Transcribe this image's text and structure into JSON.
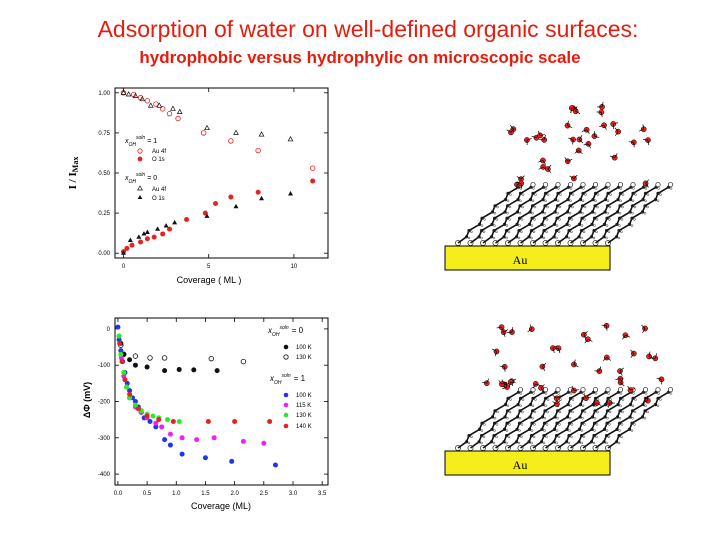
{
  "slide": {
    "title": "Adsorption of water on well-defined organic surfaces:",
    "subtitle": "hydrophobic versus hydrophylic on microscopic scale"
  },
  "colors": {
    "title": "#e81c0c",
    "substrate": "#f5ee1a",
    "red": "#e82020",
    "black": "#111111",
    "blue": "#2233ee",
    "magenta": "#ee22ee",
    "green": "#22ee22"
  },
  "substrates": [
    {
      "label": "Au"
    },
    {
      "label": "Au"
    }
  ],
  "chart_data": [
    {
      "type": "scatter",
      "xlabel": "Coverage ( ML )",
      "ylabel_main": "I / I",
      "ylabel_sub": "Max",
      "xlim": [
        -0.5,
        12
      ],
      "ylim": [
        -0.03,
        1.03
      ],
      "x_ticks": [
        "0",
        "5",
        "10"
      ],
      "y_ticks": [
        "0.00",
        "0.25",
        "0.50",
        "0.75",
        "1.00"
      ],
      "legend": {
        "groups": [
          {
            "symbol": "x",
            "sub": "OH",
            "sup": "soln",
            "value": "= 1"
          },
          {
            "symbol": "x",
            "sub": "OH",
            "sup": "soln",
            "value": "= 0"
          }
        ],
        "entries": [
          "Au 4f",
          "O 1s",
          "Au 4f",
          "O 1s"
        ]
      },
      "series": [
        {
          "name": "Au 4f",
          "marker": "circle-open",
          "color": "#e82020",
          "points": [
            [
              0,
              1.0
            ],
            [
              0.6,
              0.99
            ],
            [
              1.0,
              0.97
            ],
            [
              1.4,
              0.95
            ],
            [
              1.9,
              0.93
            ],
            [
              2.3,
              0.9
            ],
            [
              2.7,
              0.87
            ],
            [
              3.2,
              0.84
            ],
            [
              4.7,
              0.75
            ],
            [
              6.3,
              0.7
            ],
            [
              7.9,
              0.64
            ],
            [
              11.1,
              0.53
            ]
          ]
        },
        {
          "name": "O 1s",
          "marker": "circle-filled",
          "color": "#e82020",
          "points": [
            [
              0,
              0.01
            ],
            [
              0.2,
              0.03
            ],
            [
              0.5,
              0.05
            ],
            [
              1.0,
              0.07
            ],
            [
              1.4,
              0.09
            ],
            [
              1.8,
              0.1
            ],
            [
              2.3,
              0.12
            ],
            [
              2.7,
              0.15
            ],
            [
              3.7,
              0.21
            ],
            [
              4.8,
              0.25
            ],
            [
              5.4,
              0.31
            ],
            [
              6.3,
              0.35
            ],
            [
              7.9,
              0.38
            ],
            [
              11.1,
              0.45
            ]
          ]
        },
        {
          "name": "Au 4f",
          "marker": "triangle-open",
          "color": "#111111",
          "points": [
            [
              0,
              1.0
            ],
            [
              0.3,
              0.99
            ],
            [
              0.7,
              0.98
            ],
            [
              1.1,
              0.96
            ],
            [
              1.6,
              0.92
            ],
            [
              2.1,
              0.92
            ],
            [
              2.9,
              0.9
            ],
            [
              3.3,
              0.88
            ],
            [
              4.9,
              0.78
            ],
            [
              6.6,
              0.75
            ],
            [
              8.1,
              0.74
            ],
            [
              9.8,
              0.71
            ]
          ]
        },
        {
          "name": "O 1s",
          "marker": "triangle-filled",
          "color": "#111111",
          "points": [
            [
              0,
              0.0
            ],
            [
              0.4,
              0.08
            ],
            [
              0.9,
              0.1
            ],
            [
              1.2,
              0.12
            ],
            [
              1.4,
              0.13
            ],
            [
              2.0,
              0.15
            ],
            [
              2.5,
              0.17
            ],
            [
              3.0,
              0.19
            ],
            [
              4.9,
              0.23
            ],
            [
              6.6,
              0.29
            ],
            [
              8.1,
              0.34
            ],
            [
              9.8,
              0.37
            ]
          ]
        }
      ]
    },
    {
      "type": "scatter",
      "xlabel": "Coverage (ML)",
      "ylabel": "ΔΦ (mV)",
      "xlim": [
        -0.05,
        3.6
      ],
      "ylim": [
        -430,
        30
      ],
      "x_ticks": [
        "0.0",
        "0.5",
        "1.0",
        "1.5",
        "2.0",
        "2.5",
        "3.0",
        "3.5"
      ],
      "y_ticks": [
        "0",
        "-100",
        "-200",
        "-300",
        "-400"
      ],
      "legend": {
        "groups": [
          {
            "symbol": "x",
            "sub": "OH",
            "sup": "soln",
            "value": "= 0"
          },
          {
            "symbol": "x",
            "sub": "OH",
            "sup": "soln",
            "value": "= 1"
          }
        ],
        "entries": [
          "100 K",
          "130 K",
          "100 K",
          "115 K",
          "130 K",
          "140 K"
        ]
      },
      "series": [
        {
          "name": "100 K",
          "group": "x=0",
          "marker": "circle-filled",
          "color": "#111111",
          "points": [
            [
              0.05,
              -40
            ],
            [
              0.1,
              -70
            ],
            [
              0.2,
              -85
            ],
            [
              0.3,
              -100
            ],
            [
              0.5,
              -105
            ],
            [
              0.8,
              -115
            ],
            [
              1.05,
              -112
            ],
            [
              1.3,
              -113
            ],
            [
              1.7,
              -115
            ]
          ]
        },
        {
          "name": "130 K",
          "group": "x=0",
          "marker": "circle-open",
          "color": "#111111",
          "points": [
            [
              0.05,
              -45
            ],
            [
              0.1,
              -70
            ],
            [
              0.3,
              -75
            ],
            [
              0.55,
              -80
            ],
            [
              0.8,
              -80
            ],
            [
              1.6,
              -82
            ],
            [
              2.15,
              -90
            ]
          ]
        },
        {
          "name": "100 K",
          "group": "x=1",
          "marker": "circle-filled",
          "color": "#2233ee",
          "points": [
            [
              0.0,
              5
            ],
            [
              0.02,
              -30
            ],
            [
              0.05,
              -60
            ],
            [
              0.08,
              -90
            ],
            [
              0.12,
              -120
            ],
            [
              0.16,
              -150
            ],
            [
              0.2,
              -170
            ],
            [
              0.25,
              -190
            ],
            [
              0.3,
              -200
            ],
            [
              0.35,
              -215
            ],
            [
              0.4,
              -230
            ],
            [
              0.45,
              -245
            ],
            [
              0.55,
              -255
            ],
            [
              0.65,
              -270
            ],
            [
              0.8,
              -305
            ],
            [
              0.9,
              -320
            ],
            [
              1.1,
              -345
            ],
            [
              1.5,
              -355
            ],
            [
              1.95,
              -365
            ],
            [
              2.7,
              -375
            ]
          ]
        },
        {
          "name": "115 K",
          "group": "x=1",
          "marker": "circle-filled",
          "color": "#ee22ee",
          "points": [
            [
              0.02,
              -20
            ],
            [
              0.06,
              -80
            ],
            [
              0.1,
              -130
            ],
            [
              0.15,
              -160
            ],
            [
              0.2,
              -190
            ],
            [
              0.3,
              -215
            ],
            [
              0.4,
              -230
            ],
            [
              0.5,
              -245
            ],
            [
              0.65,
              -260
            ],
            [
              0.75,
              -270
            ],
            [
              0.9,
              -290
            ],
            [
              1.1,
              -300
            ],
            [
              1.35,
              -305
            ],
            [
              1.65,
              -300
            ],
            [
              2.15,
              -310
            ],
            [
              2.5,
              -315
            ]
          ]
        },
        {
          "name": "130 K",
          "group": "x=1",
          "marker": "circle-filled",
          "color": "#22ee22",
          "points": [
            [
              0.02,
              -20
            ],
            [
              0.05,
              -70
            ],
            [
              0.1,
              -120
            ],
            [
              0.15,
              -160
            ],
            [
              0.2,
              -190
            ],
            [
              0.3,
              -210
            ],
            [
              0.4,
              -225
            ],
            [
              0.5,
              -235
            ],
            [
              0.6,
              -240
            ],
            [
              0.7,
              -245
            ],
            [
              0.85,
              -250
            ],
            [
              1.05,
              -255
            ]
          ]
        },
        {
          "name": "140 K",
          "group": "x=1",
          "marker": "circle-filled",
          "color": "#e82020",
          "points": [
            [
              0.03,
              -40
            ],
            [
              0.07,
              -90
            ],
            [
              0.12,
              -140
            ],
            [
              0.2,
              -180
            ],
            [
              0.35,
              -220
            ],
            [
              0.5,
              -240
            ],
            [
              0.7,
              -250
            ],
            [
              0.95,
              -255
            ],
            [
              1.55,
              -255
            ],
            [
              2.0,
              -255
            ],
            [
              2.6,
              -255
            ]
          ]
        }
      ]
    }
  ]
}
